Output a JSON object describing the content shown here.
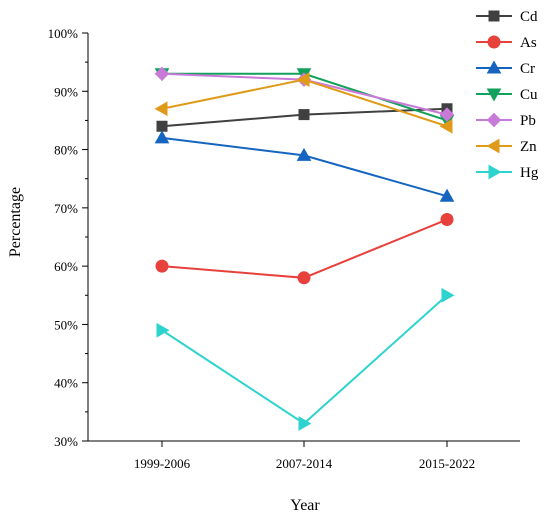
{
  "chart_data": {
    "type": "line",
    "title": "",
    "xlabel": "Year",
    "ylabel": "Percentage",
    "categories": [
      "1999-2006",
      "2007-2014",
      "2015-2022"
    ],
    "ylim": [
      30,
      100
    ],
    "yticks": [
      30,
      40,
      50,
      60,
      70,
      80,
      90,
      100
    ],
    "ytick_labels": [
      "30%",
      "40%",
      "50%",
      "60%",
      "70%",
      "80%",
      "90%",
      "100%"
    ],
    "grid": false,
    "legend_position": "top-right",
    "series": [
      {
        "name": "Cd",
        "values": [
          84,
          86,
          87
        ],
        "color": "#404040",
        "marker": "square"
      },
      {
        "name": "As",
        "values": [
          60,
          58,
          68
        ],
        "color": "#e8413c",
        "marker": "circle"
      },
      {
        "name": "Cr",
        "values": [
          82,
          79,
          72
        ],
        "color": "#1565c0",
        "marker": "triangle-up"
      },
      {
        "name": "Cu",
        "values": [
          93,
          93,
          85
        ],
        "color": "#12a15a",
        "marker": "triangle-down"
      },
      {
        "name": "Pb",
        "values": [
          93,
          92,
          86
        ],
        "color": "#c97ad8",
        "marker": "diamond"
      },
      {
        "name": "Zn",
        "values": [
          87,
          92,
          84
        ],
        "color": "#e09a1a",
        "marker": "triangle-left"
      },
      {
        "name": "Hg",
        "values": [
          49,
          33,
          55
        ],
        "color": "#2cd3cf",
        "marker": "triangle-right"
      }
    ]
  }
}
